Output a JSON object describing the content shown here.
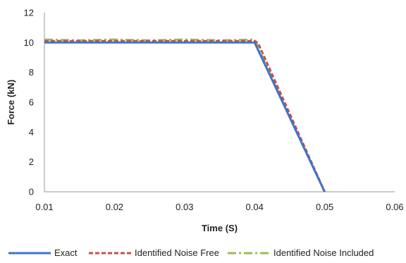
{
  "chart_data": {
    "type": "line",
    "title": "",
    "xlabel": "Time (S)",
    "ylabel": "Force (kN)",
    "xlim": [
      0.01,
      0.06
    ],
    "ylim": [
      0,
      12
    ],
    "x_ticks": [
      0.01,
      0.02,
      0.03,
      0.04,
      0.05,
      0.06
    ],
    "x_tick_labels": [
      "0.01",
      "0.02",
      "0.03",
      "0.04",
      "0.05",
      "0.06"
    ],
    "y_ticks": [
      0,
      2,
      4,
      6,
      8,
      10,
      12
    ],
    "y_tick_labels": [
      "0",
      "2",
      "4",
      "6",
      "8",
      "10",
      "12"
    ],
    "grid": false,
    "legend_position": "bottom",
    "series": [
      {
        "name": "Exact",
        "color": "#4472C4",
        "style": "solid",
        "x": [
          0.01,
          0.04,
          0.05
        ],
        "y": [
          10.0,
          10.0,
          0.0
        ]
      },
      {
        "name": "Identified Noise Free",
        "color": "#C0504D",
        "style": "dashed",
        "x": [
          0.01,
          0.02,
          0.03,
          0.04,
          0.0405,
          0.05
        ],
        "y": [
          10.1,
          10.1,
          10.1,
          10.1,
          9.95,
          0.0
        ]
      },
      {
        "name": "Identified Noise Included",
        "color": "#9BBB59",
        "style": "dash-dot",
        "x": [
          0.01,
          0.015,
          0.02,
          0.025,
          0.03,
          0.035,
          0.04,
          0.0403,
          0.045,
          0.05
        ],
        "y": [
          10.2,
          10.15,
          10.2,
          10.15,
          10.2,
          10.15,
          10.2,
          9.9,
          5.0,
          0.0
        ]
      }
    ]
  }
}
